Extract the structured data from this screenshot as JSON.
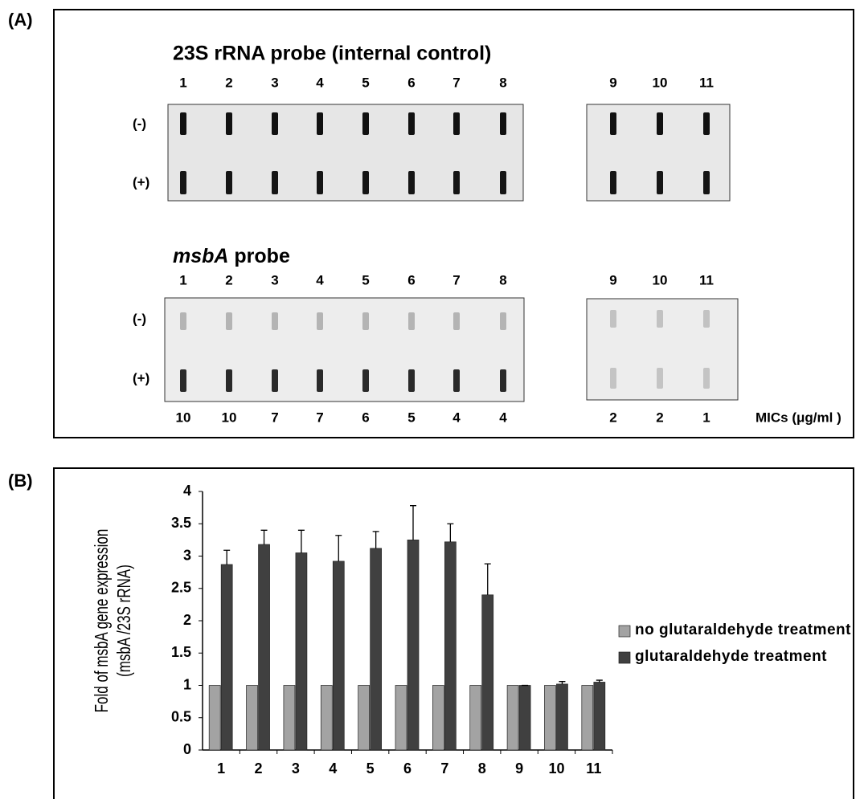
{
  "panel_a": {
    "label": "(A)",
    "top": {
      "title": "23S rRNA probe (internal control)",
      "lanes": [
        "1",
        "2",
        "3",
        "4",
        "5",
        "6",
        "7",
        "8"
      ],
      "lanes_right": [
        "9",
        "10",
        "11"
      ],
      "row_minus": "(-)",
      "row_plus": "(+)"
    },
    "bottom": {
      "title_italic": "msbA",
      "title_rest": " probe",
      "lanes": [
        "1",
        "2",
        "3",
        "4",
        "5",
        "6",
        "7",
        "8"
      ],
      "lanes_right": [
        "9",
        "10",
        "11"
      ],
      "row_minus": "(-)",
      "row_plus": "(+)",
      "mics": [
        "10",
        "10",
        "7",
        "7",
        "6",
        "5",
        "4",
        "4"
      ],
      "mics_right": [
        "2",
        "2",
        "1"
      ],
      "mics_label": "MICs (μg/ml )"
    }
  },
  "chart_data": {
    "type": "bar",
    "panel_label": "(B)",
    "y_label": [
      "Fold of msbA  gene expression",
      "(msbA /23S rRNA)"
    ],
    "categories": [
      "1",
      "2",
      "3",
      "4",
      "5",
      "6",
      "7",
      "8",
      "9",
      "10",
      "11"
    ],
    "series": [
      {
        "name": "no glutaraldehyde treatment",
        "color": "#a3a3a3",
        "values": [
          1,
          1,
          1,
          1,
          1,
          1,
          1,
          1,
          1,
          1,
          1
        ]
      },
      {
        "name": "glutaraldehyde treatment",
        "color": "#404040",
        "values": [
          2.87,
          3.18,
          3.05,
          2.92,
          3.12,
          3.25,
          3.22,
          2.4,
          1.0,
          1.02,
          1.05
        ],
        "errors": [
          0.22,
          0.22,
          0.35,
          0.4,
          0.26,
          0.53,
          0.28,
          0.48,
          0,
          0.04,
          0.03
        ]
      }
    ],
    "ylim": [
      0,
      4
    ],
    "yticks": [
      0,
      0.5,
      1,
      1.5,
      2,
      2.5,
      3,
      3.5,
      4
    ],
    "legend": "right"
  }
}
